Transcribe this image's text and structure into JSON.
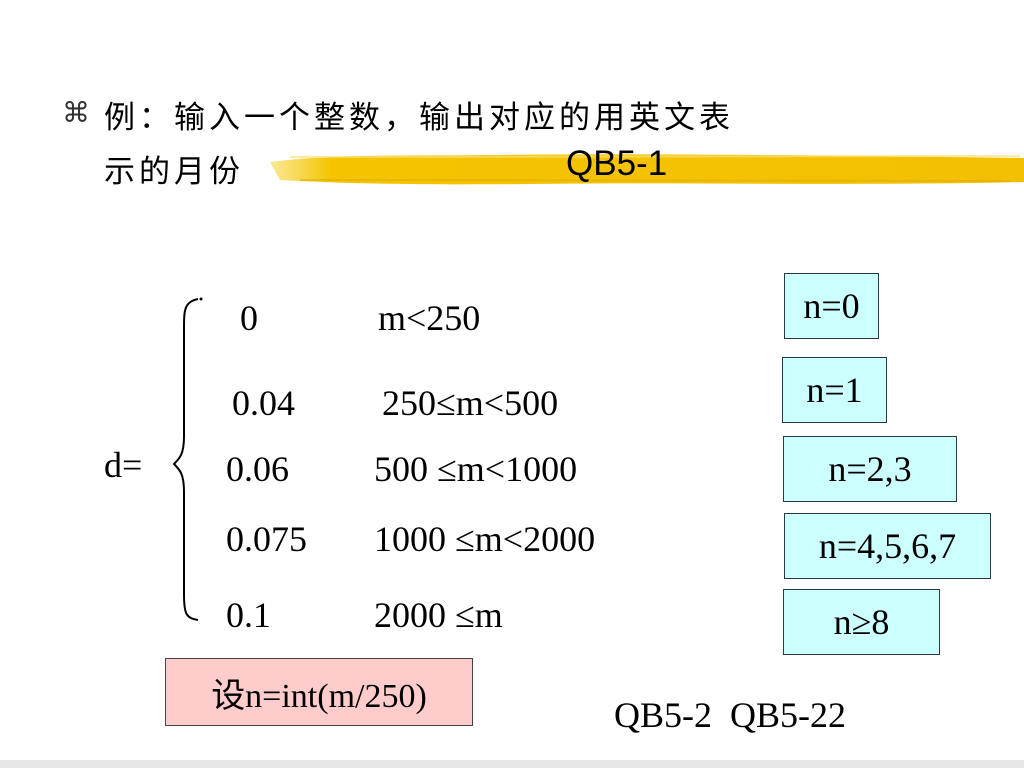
{
  "header": {
    "bullet": "⌘",
    "line1": "例：输入一个整数，输出对应的用英文表",
    "line2": "示的月份",
    "code": "QB5-1"
  },
  "formula": {
    "lhs": "d=",
    "rows": [
      {
        "value": "0",
        "condition": "m<250"
      },
      {
        "value": "0.04",
        "condition": "250≤m<500"
      },
      {
        "value": "0.06",
        "condition": "500 ≤m<1000"
      },
      {
        "value": "0.075",
        "condition": "1000 ≤m<2000"
      },
      {
        "value": "0.1",
        "condition": "2000 ≤m"
      }
    ]
  },
  "boxes": [
    "n=0",
    "n=1",
    "n=2,3",
    "n=4,5,6,7",
    "n≥8"
  ],
  "hint": "设n=int(m/250)",
  "references": "QB5-2  QB5-22",
  "colors": {
    "highlight": "#f5c400",
    "box_fill": "#ccffff",
    "hint_fill": "#ffcccc"
  }
}
